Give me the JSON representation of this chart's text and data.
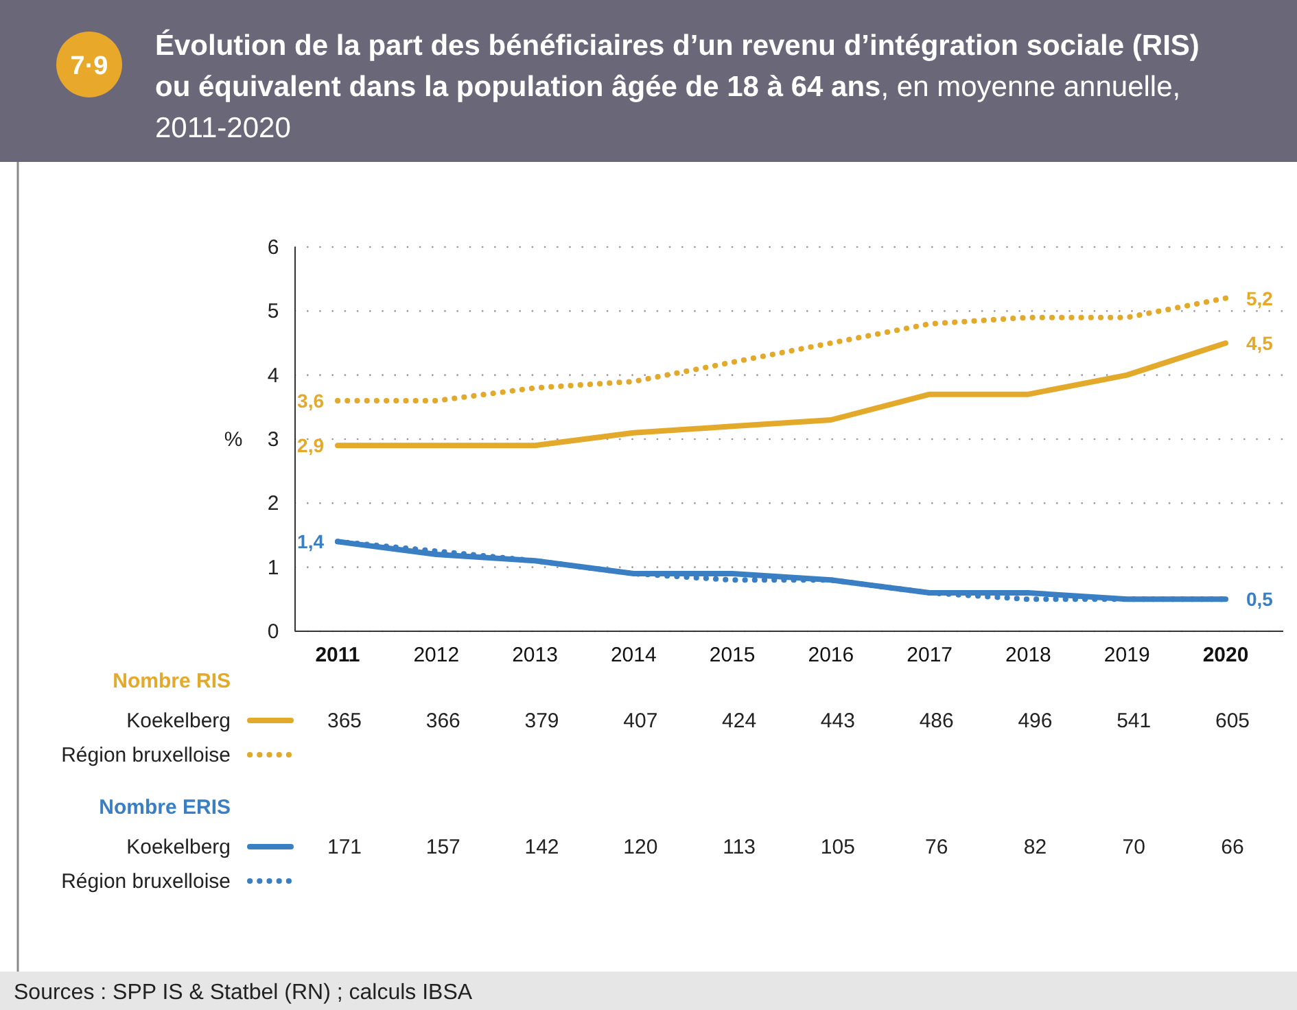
{
  "chart_data": {
    "type": "line",
    "title": "Évolution de la part des bénéficiaires d’un revenu d’intégration sociale (RIS) ou équivalent dans la population âgée de 18 à 64 ans",
    "subtitle": ", en moyenne annuelle, 2011-2020",
    "ylabel": "%",
    "categories": [
      "2011",
      "2012",
      "2013",
      "2014",
      "2015",
      "2016",
      "2017",
      "2018",
      "2019",
      "2020"
    ],
    "series": [
      {
        "name": "Koekelberg",
        "color": "#e3a92b",
        "line_style": "solid",
        "values": [
          2.9,
          2.9,
          2.9,
          3.1,
          3.2,
          3.3,
          3.7,
          3.7,
          4.0,
          4.5
        ],
        "value_labels": [
          "2,9",
          null,
          null,
          null,
          null,
          null,
          null,
          null,
          null,
          "4,5"
        ]
      },
      {
        "name": "Région bruxelloise",
        "color": "#e3a92b",
        "line_style": "dotted",
        "values": [
          3.6,
          3.6,
          3.8,
          3.9,
          4.2,
          4.5,
          4.8,
          4.9,
          4.9,
          5.2
        ],
        "value_labels": [
          "3,6",
          null,
          null,
          null,
          null,
          null,
          null,
          null,
          null,
          "5,2"
        ]
      },
      {
        "name": "Koekelberg",
        "color": "#3a7fc4",
        "line_style": "solid",
        "values": [
          1.4,
          1.2,
          1.1,
          0.9,
          0.9,
          0.8,
          0.6,
          0.6,
          0.5,
          0.5
        ],
        "value_labels": [
          "1,4",
          null,
          null,
          null,
          null,
          null,
          null,
          null,
          null,
          "0,5"
        ]
      },
      {
        "name": "Région bruxelloise",
        "color": "#3a7fc4",
        "line_style": "dotted",
        "values": [
          1.4,
          1.25,
          1.1,
          0.9,
          0.8,
          0.8,
          0.6,
          0.5,
          0.5,
          0.5
        ],
        "value_labels": [
          null,
          null,
          null,
          null,
          null,
          null,
          null,
          null,
          null,
          null
        ]
      }
    ],
    "ylim": [
      0,
      6
    ],
    "yticks": [
      0,
      1,
      2,
      3,
      4,
      5,
      6
    ],
    "grid": "y",
    "legend": "bottom",
    "marker": "none",
    "annotations": [
      "7·9",
      "Nombre RIS",
      "365",
      "366",
      "379",
      "407",
      "424",
      "443",
      "486",
      "496",
      "541",
      "605",
      "Nombre ERIS",
      "171",
      "157",
      "142",
      "120",
      "113",
      "105",
      "76",
      "82",
      "70",
      "66",
      "Sources : SPP IS & Statbel (RN) ; calculs IBSA"
    ]
  }
}
